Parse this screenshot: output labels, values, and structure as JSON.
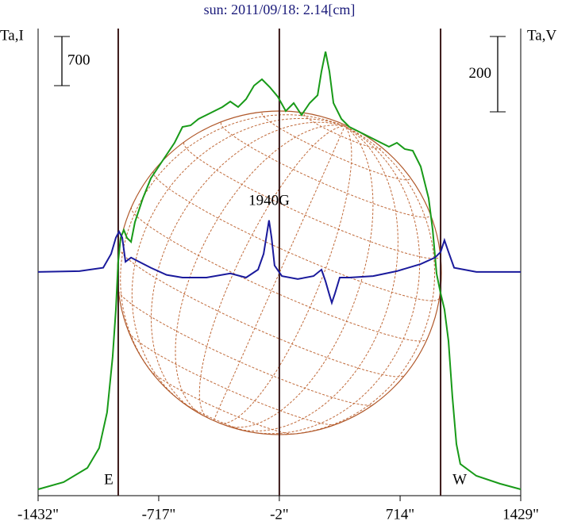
{
  "chart_data": {
    "type": "line",
    "title": "sun: 2011/09/18: 2.14[cm]",
    "y_label": "Ta,I",
    "y2_label": "Ta,V",
    "xlim": [
      -1432,
      1429
    ],
    "xticks": [
      {
        "value": -1432,
        "label": "-1432\""
      },
      {
        "value": -717,
        "label": "-717\""
      },
      {
        "value": -2,
        "label": "-2\""
      },
      {
        "value": 714,
        "label": "714\""
      },
      {
        "value": 1429,
        "label": "1429\""
      }
    ],
    "ylim": [
      0,
      6650
    ],
    "y2lim": [
      -594,
      646
    ],
    "scale_bars": [
      700,
      200
    ],
    "markers": [
      {
        "x": -957,
        "label": "E"
      },
      {
        "x": -2
      },
      {
        "x": 954,
        "label": "W"
      }
    ],
    "annotations": [
      {
        "text": "1940G",
        "x": -63
      }
    ],
    "series": [
      {
        "name": "I",
        "color": "#189a18",
        "x": [
          -1432,
          -1281,
          -1140,
          -1070,
          -1023,
          -990,
          -971,
          -957,
          -943,
          -924,
          -905,
          -881,
          -858,
          -811,
          -764,
          -717,
          -670,
          -623,
          -576,
          -528,
          -481,
          -434,
          -387,
          -340,
          -293,
          -246,
          -199,
          -152,
          -105,
          -58,
          -11,
          36,
          83,
          130,
          178,
          225,
          248,
          272,
          295,
          319,
          366,
          413,
          507,
          601,
          648,
          695,
          742,
          789,
          836,
          883,
          907,
          930,
          954,
          977,
          1001,
          1024,
          1048,
          1071,
          1166,
          1307,
          1429
        ],
        "values": [
          90,
          192,
          395,
          677,
          1185,
          1976,
          2653,
          3331,
          3669,
          3782,
          3669,
          3613,
          3895,
          4234,
          4516,
          4685,
          4855,
          5024,
          5250,
          5272,
          5363,
          5419,
          5476,
          5532,
          5611,
          5532,
          5645,
          5837,
          5927,
          5814,
          5679,
          5476,
          5589,
          5419,
          5589,
          5701,
          6040,
          6322,
          6040,
          5589,
          5363,
          5250,
          5137,
          5024,
          4968,
          5024,
          4934,
          4911,
          4685,
          4234,
          3782,
          3161,
          2879,
          2653,
          2202,
          1411,
          734,
          452,
          282,
          169,
          90
        ]
      },
      {
        "name": "V",
        "color": "#1a1a9c",
        "axis": "y2",
        "x": [
          -1432,
          -1187,
          -1046,
          -999,
          -971,
          -952,
          -933,
          -914,
          -881,
          -834,
          -764,
          -670,
          -576,
          -434,
          -293,
          -199,
          -128,
          -95,
          -72,
          -63,
          -48,
          -30,
          13,
          107,
          201,
          248,
          272,
          295,
          309,
          328,
          356,
          413,
          554,
          695,
          836,
          921,
          954,
          977,
          1001,
          1034,
          1166,
          1429
        ],
        "values": [
          0,
          2,
          11,
          48,
          91,
          107,
          91,
          27,
          38,
          27,
          11,
          -8,
          -15,
          -15,
          -4,
          -15,
          6,
          48,
          112,
          137,
          91,
          17,
          -11,
          -19,
          -11,
          6,
          -25,
          -61,
          -82,
          -57,
          -15,
          -15,
          -11,
          2,
          21,
          38,
          53,
          84,
          53,
          11,
          0,
          0
        ]
      }
    ]
  }
}
